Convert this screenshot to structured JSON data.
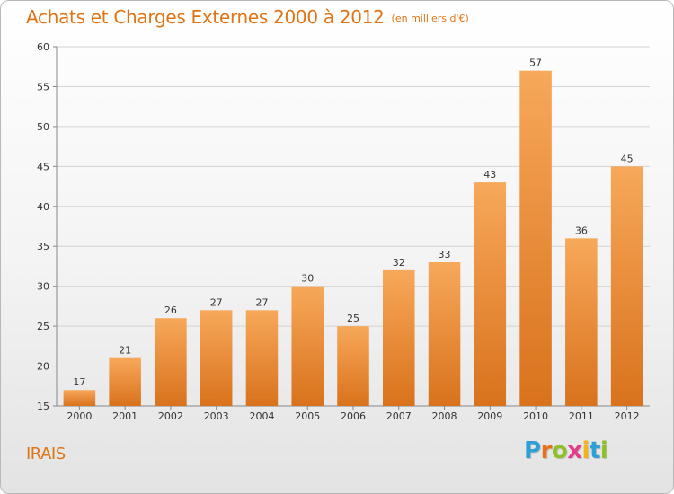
{
  "title": "Achats et Charges Externes 2000 à 2012",
  "unit": "(en milliers d'€)",
  "commune": "IRAIS",
  "logo": {
    "letters": [
      "P",
      "r",
      "o",
      "x",
      "i",
      "t",
      "i"
    ],
    "colors": [
      "#2f9fd8",
      "#e7711b",
      "#8fbf2a",
      "#e33b8a",
      "#f2b31d",
      "#2f9fd8",
      "#8fbf2a"
    ]
  },
  "colors": {
    "bar_top": "#f7a85a",
    "bar_bottom": "#d9721c",
    "title": "#e07414",
    "grid": "#d4d4d4"
  },
  "chart_data": {
    "type": "bar",
    "categories": [
      "2000",
      "2001",
      "2002",
      "2003",
      "2004",
      "2005",
      "2006",
      "2007",
      "2008",
      "2009",
      "2010",
      "2011",
      "2012"
    ],
    "values": [
      17,
      21,
      26,
      27,
      27,
      30,
      25,
      32,
      33,
      43,
      57,
      36,
      45
    ],
    "ylim": [
      15,
      60
    ],
    "yticks": [
      15,
      20,
      25,
      30,
      35,
      40,
      45,
      50,
      55,
      60
    ],
    "grid": true
  }
}
